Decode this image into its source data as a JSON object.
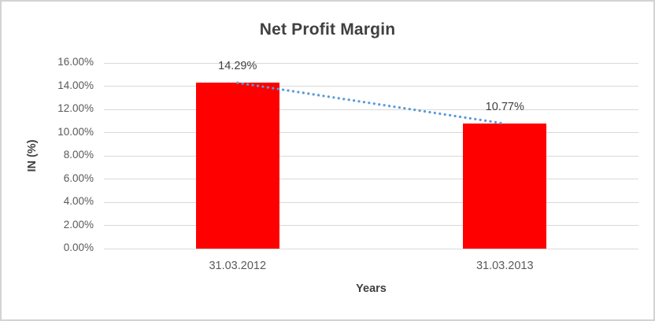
{
  "window": {
    "background": "#FFFFFF",
    "border_color": "#D3D3D3"
  },
  "chart_data": {
    "type": "bar",
    "title": "Net Profit Margin",
    "xlabel": "Years",
    "ylabel": "IN (%)",
    "categories": [
      "31.03.2012",
      "31.03.2013"
    ],
    "series": [
      {
        "name": "Net Profit Margin",
        "values": [
          14.29,
          10.77
        ]
      }
    ],
    "data_labels": [
      "14.29%",
      "10.77%"
    ],
    "ylim": [
      0,
      16
    ],
    "ytick_step": 2,
    "ytick_labels": [
      "0.00%",
      "2.00%",
      "4.00%",
      "6.00%",
      "8.00%",
      "10.00%",
      "12.00%",
      "14.00%",
      "16.00%"
    ],
    "grid": true,
    "legend": "none",
    "trendline": {
      "type": "linear",
      "style": "dotted",
      "color": "#5B9BD5"
    },
    "colors": {
      "bar": "#FF0000",
      "gridline": "#D9D9D9",
      "title_text": "#404040",
      "tick_text": "#595959",
      "label_text": "#404040"
    }
  }
}
